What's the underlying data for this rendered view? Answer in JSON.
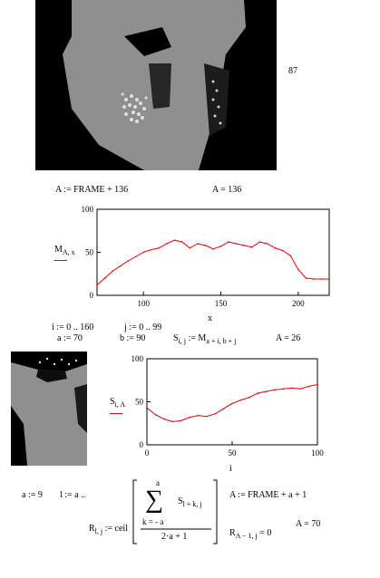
{
  "frame_readout": "87",
  "row1": {
    "left": "A := FRAME + 136",
    "right": "A = 136"
  },
  "plot1": {
    "ylabel_main": "M",
    "ylabel_sub": "A, x",
    "xlabel": "x",
    "yticks": [
      "100",
      "50",
      "0"
    ],
    "xticks": [
      "100",
      "150",
      "200"
    ]
  },
  "ranges": {
    "i_range": "i := 0 .. 160",
    "j_range": "j := 0 .. 99"
  },
  "row3": {
    "a_def": "a := 70",
    "b_def": "b := 90",
    "s_def_main": "S",
    "s_def_sub": "i, j",
    "s_def_mid": " := M",
    "s_def_sub2": "a + i, b + j",
    "a_val": "A = 26"
  },
  "plot2": {
    "ylabel_main": "S",
    "ylabel_sub": "i, A",
    "xlabel": "i",
    "yticks": [
      "100",
      "50",
      "0"
    ],
    "xticks": [
      "0",
      "50",
      "100"
    ]
  },
  "formula": {
    "a_def": "a := 9",
    "l_def": "l := a ..",
    "sum_top": "a",
    "sigma": "∑",
    "sum_term_main": "S",
    "sum_term_sub": "l + k, j",
    "sum_bottom": "k = - a",
    "denominator": "2·a + 1",
    "lhs_main": "R",
    "lhs_sub": "l, j",
    "lhs_mid": " := ceil",
    "a_frame": "A := FRAME + a + 1",
    "r_zero_main": "R",
    "r_zero_sub": "A − 1, j",
    "r_zero_rhs": " = 0",
    "a_val": "A = 70"
  },
  "chart_data": [
    {
      "type": "line",
      "xlabel": "x",
      "ylabel": "M A,x",
      "xlim": [
        70,
        220
      ],
      "ylim": [
        0,
        100
      ],
      "series": [
        {
          "color": "#e8000b",
          "x": [
            70,
            75,
            80,
            85,
            90,
            95,
            100,
            105,
            110,
            115,
            120,
            125,
            130,
            135,
            140,
            145,
            150,
            155,
            160,
            165,
            170,
            175,
            180,
            185,
            190,
            195,
            200,
            205,
            210,
            215,
            220
          ],
          "y": [
            12,
            20,
            28,
            34,
            40,
            45,
            50,
            53,
            55,
            60,
            64,
            62,
            55,
            60,
            58,
            54,
            57,
            62,
            60,
            58,
            56,
            62,
            60,
            55,
            52,
            46,
            30,
            20,
            19,
            19,
            19
          ]
        }
      ]
    },
    {
      "type": "line",
      "xlabel": "i",
      "ylabel": "S i,A",
      "xlim": [
        0,
        100
      ],
      "ylim": [
        0,
        100
      ],
      "series": [
        {
          "color": "#e8000b",
          "x": [
            0,
            5,
            10,
            15,
            20,
            25,
            30,
            35,
            40,
            45,
            50,
            55,
            60,
            65,
            70,
            75,
            80,
            85,
            90,
            95,
            100
          ],
          "y": [
            43,
            35,
            30,
            27,
            28,
            32,
            34,
            33,
            36,
            42,
            48,
            52,
            55,
            60,
            62,
            64,
            65,
            66,
            65,
            68,
            70
          ]
        }
      ]
    }
  ]
}
